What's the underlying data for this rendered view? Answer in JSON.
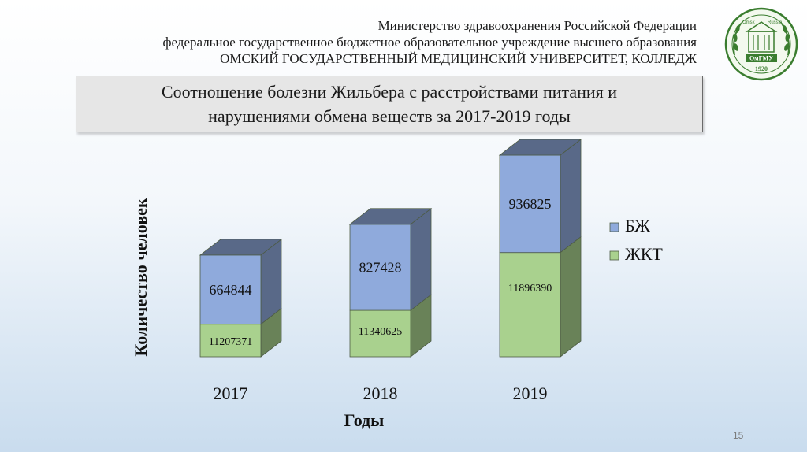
{
  "header": {
    "line1": "Министерство здравоохранения Российской Федерации",
    "line2": "федеральное государственное бюджетное образовательное учреждение высшего образования",
    "line3": "ОМСКИЙ ГОСУДАРСТВЕННЫЙ МЕДИЦИНСКИЙ УНИВЕРСИТЕТ, КОЛЛЕДЖ"
  },
  "logo": {
    "top_left": "Omsk",
    "top_right": "Russia",
    "name": "ОмГМУ",
    "year": "1920"
  },
  "slide_title": "Соотношение болезни Жильбера с расстройствами питания и\nнарушениями обмена веществ за 2017-2019 годы",
  "page_number": "15",
  "chart_data": {
    "type": "bar",
    "stacked": true,
    "three_d": true,
    "categories": [
      "2017",
      "2018",
      "2019"
    ],
    "series": [
      {
        "name": "ЖКТ",
        "values": [
          11207371,
          11340625,
          11896390
        ],
        "color": "#a9d18e"
      },
      {
        "name": "БЖ",
        "values": [
          664844,
          827428,
          936825
        ],
        "color": "#8faadc"
      }
    ],
    "xlabel": "Годы",
    "ylabel": "Количество человек",
    "legend_position": "right",
    "grid": false,
    "axis_visible": false
  }
}
